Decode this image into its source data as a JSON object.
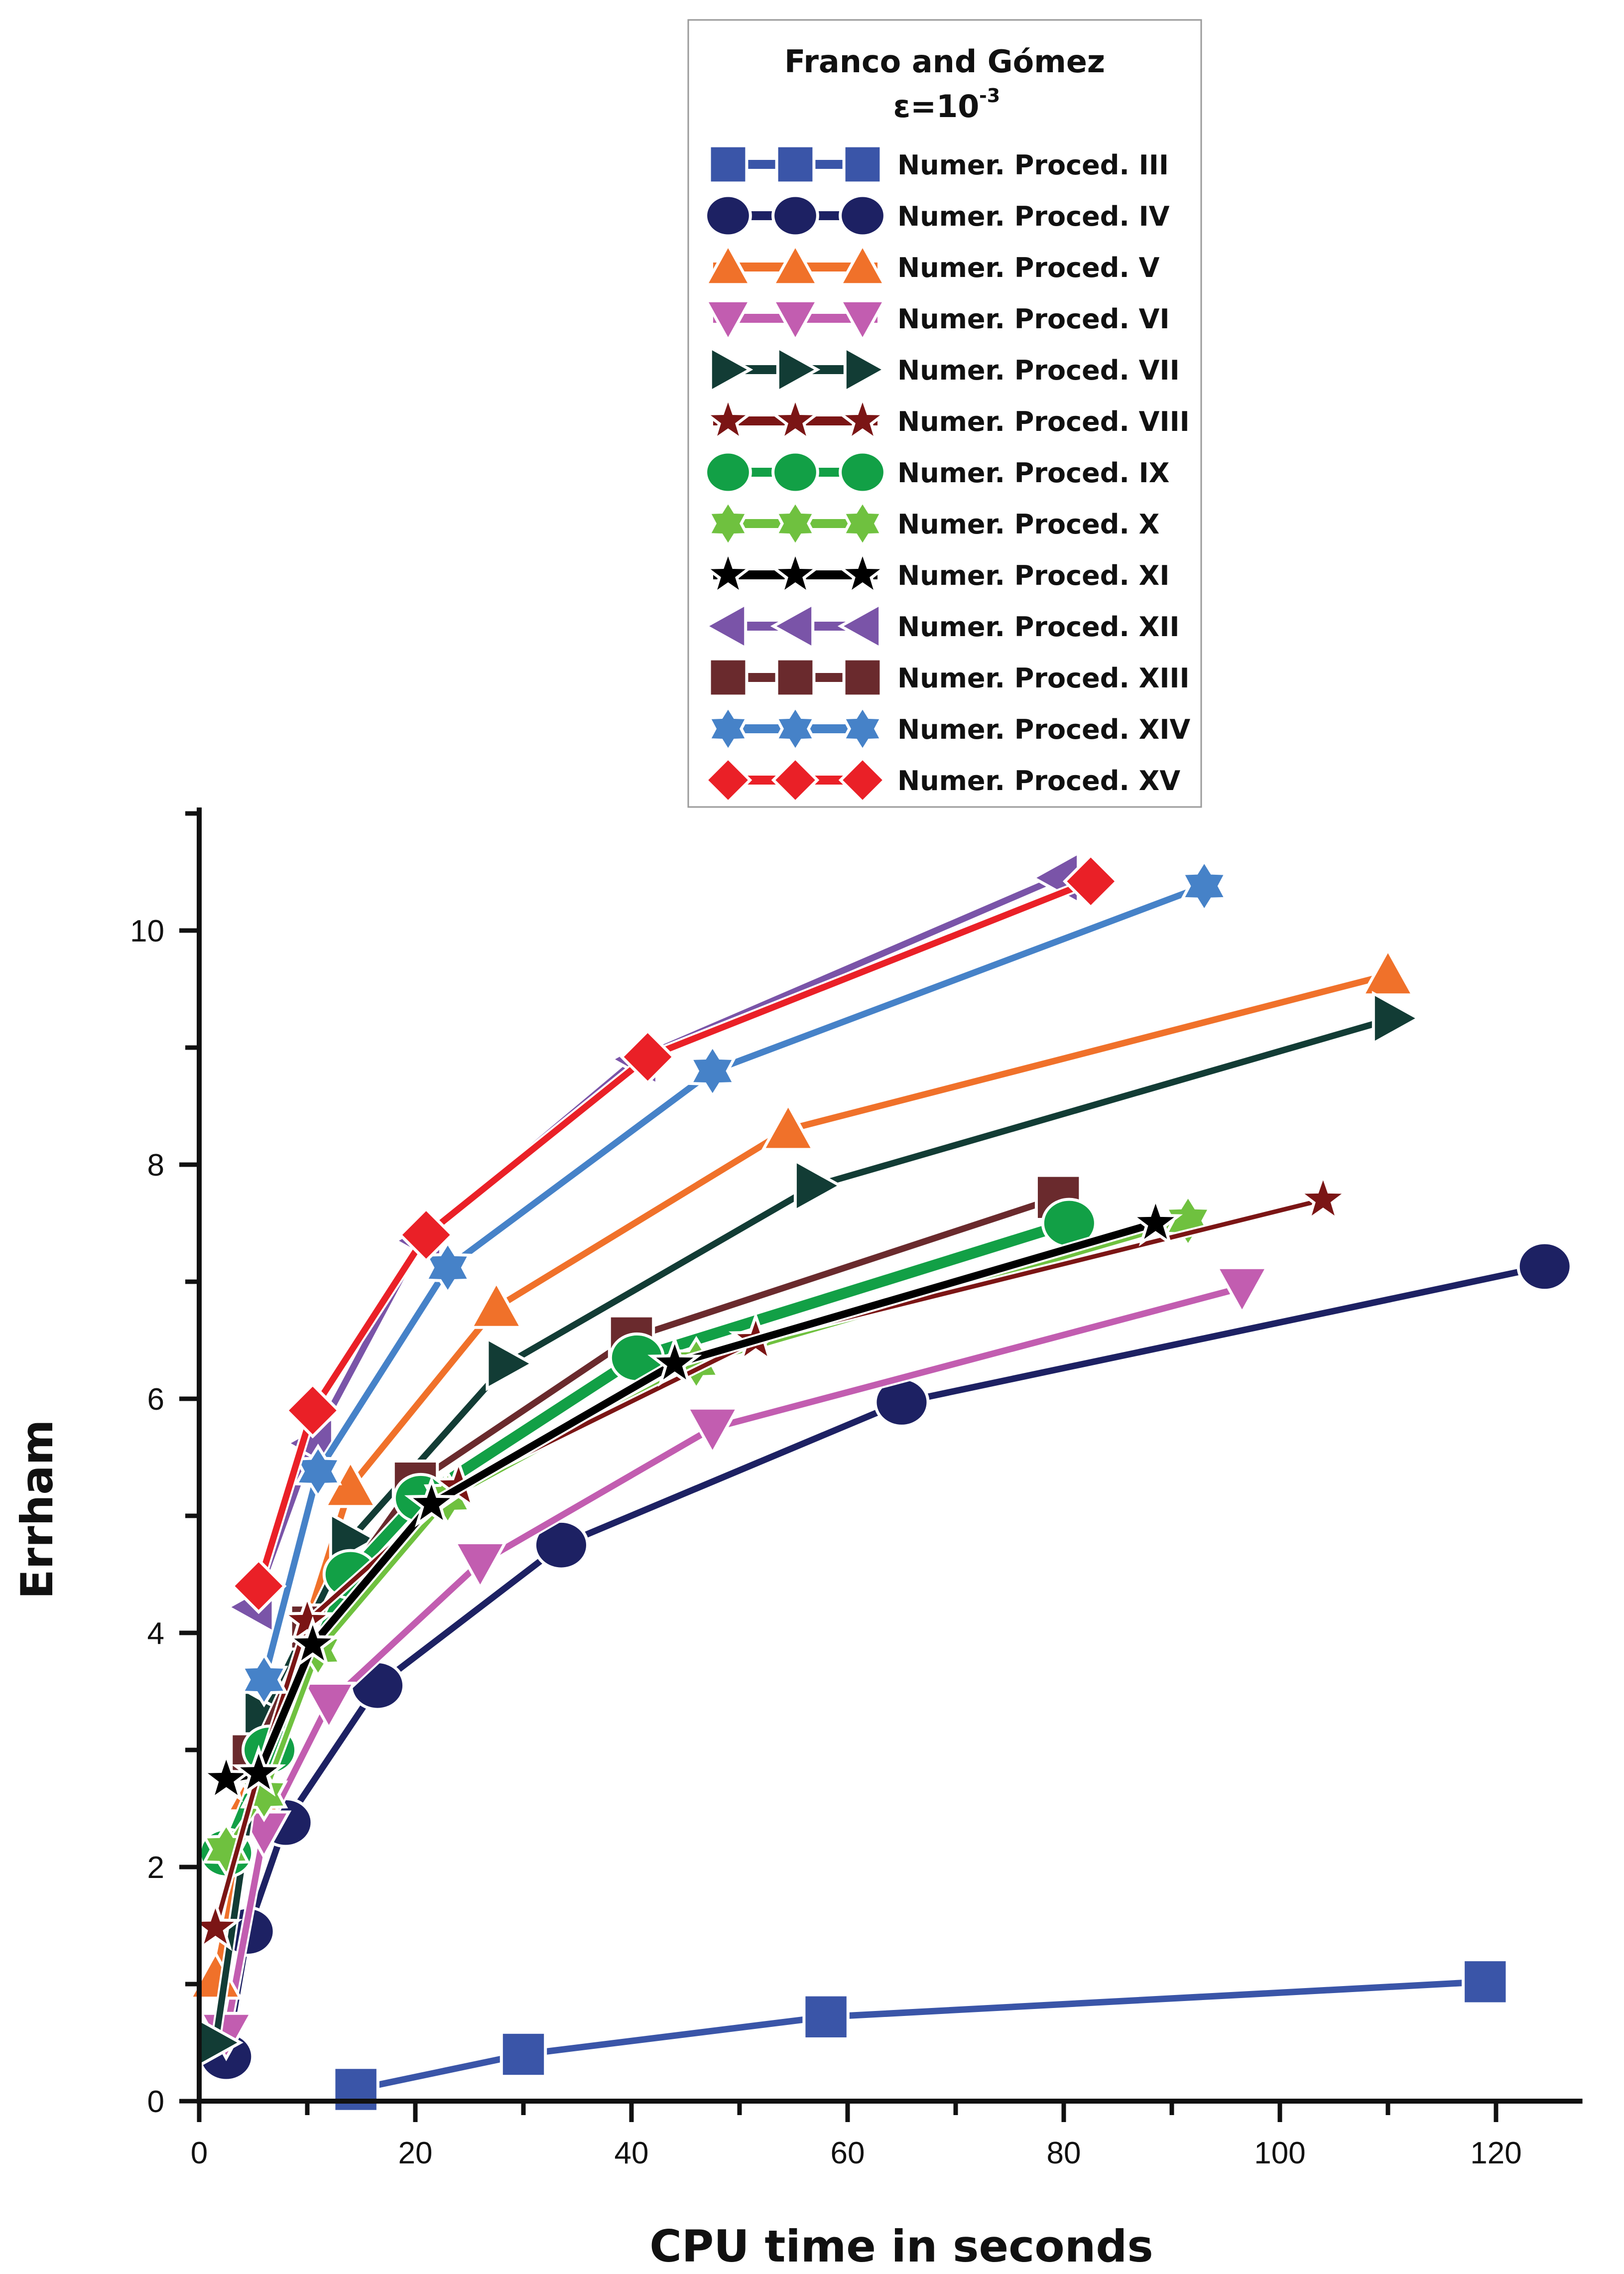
{
  "chart_data": {
    "type": "line",
    "xlabel": "CPU time in seconds",
    "ylabel": "Errham",
    "xlim": [
      0,
      128
    ],
    "ylim": [
      0,
      11
    ],
    "x_ticks": [
      0,
      20,
      40,
      60,
      80,
      100,
      120
    ],
    "y_ticks": [
      0,
      2,
      4,
      6,
      8,
      10
    ],
    "legend": {
      "title": "Franco and Gómez",
      "subtitle_base": "ε=10",
      "subtitle_exp": "-3",
      "placement": "top-center"
    },
    "series": [
      {
        "name": "Numer. Proced. III",
        "marker": "square",
        "color": "#3a55a8",
        "x": [
          14.5,
          30.0,
          58.0,
          119.0
        ],
        "y": [
          0.1,
          0.4,
          0.72,
          1.02
        ]
      },
      {
        "name": "Numer. Proced. IV",
        "marker": "circle",
        "color": "#1d2163",
        "x": [
          2.5,
          4.5,
          8.0,
          16.5,
          33.5,
          65.0,
          124.5
        ],
        "y": [
          0.38,
          1.45,
          2.38,
          3.55,
          4.75,
          5.97,
          7.13
        ]
      },
      {
        "name": "Numer. Proced. V",
        "marker": "triangle-up",
        "color": "#f0712a",
        "x": [
          1.5,
          5.0,
          14.0,
          27.5,
          54.5,
          110.0
        ],
        "y": [
          1.05,
          2.65,
          5.25,
          6.78,
          8.3,
          9.62
        ]
      },
      {
        "name": "Numer. Proced. VI",
        "marker": "triangle-down",
        "color": "#c25db0",
        "x": [
          2.5,
          6.0,
          12.0,
          26.0,
          47.5,
          96.5
        ],
        "y": [
          0.58,
          2.3,
          3.4,
          4.6,
          5.75,
          6.95
        ]
      },
      {
        "name": "Numer. Proced. VII",
        "marker": "triangle-right",
        "color": "#123c35",
        "x": [
          1.5,
          6.0,
          14.0,
          28.5,
          57.0,
          110.5
        ],
        "y": [
          0.5,
          3.3,
          4.8,
          6.3,
          7.82,
          9.25
        ]
      },
      {
        "name": "Numer. Proced. VIII",
        "marker": "star5",
        "color": "#7b1515",
        "x": [
          1.5,
          5.5,
          10.0,
          24.0,
          51.5,
          104.0
        ],
        "y": [
          1.48,
          2.8,
          4.1,
          5.25,
          6.5,
          7.7
        ]
      },
      {
        "name": "Numer. Proced. IX",
        "marker": "circle",
        "color": "#12a046",
        "x": [
          2.5,
          6.5,
          14.0,
          20.5,
          40.5,
          80.5
        ],
        "y": [
          2.12,
          3.0,
          4.5,
          5.15,
          6.35,
          7.5
        ]
      },
      {
        "name": "Numer. Proced. X",
        "marker": "star6",
        "color": "#6fc13f",
        "x": [
          2.5,
          6.0,
          11.0,
          23.0,
          46.0,
          91.5
        ],
        "y": [
          2.15,
          2.62,
          3.85,
          5.15,
          6.3,
          7.52
        ]
      },
      {
        "name": "Numer. Proced. XI",
        "marker": "star5",
        "color": "#000000",
        "x": [
          2.5,
          5.5,
          10.5,
          21.5,
          44.0,
          88.5
        ],
        "y": [
          2.75,
          2.8,
          3.9,
          5.1,
          6.3,
          7.5
        ]
      },
      {
        "name": "Numer. Proced. XII",
        "marker": "triangle-left",
        "color": "#7a54a8",
        "x": [
          5.0,
          10.5,
          20.5,
          40.5,
          79.5
        ],
        "y": [
          4.22,
          5.62,
          7.35,
          8.9,
          10.45
        ]
      },
      {
        "name": "Numer. Proced. XIII",
        "marker": "square",
        "color": "#6a2a2d",
        "x": [
          5.0,
          10.5,
          20.0,
          40.0,
          79.5
        ],
        "y": [
          2.95,
          4.05,
          5.28,
          6.52,
          7.72
        ]
      },
      {
        "name": "Numer. Proced. XIV",
        "marker": "star6",
        "color": "#4682c8",
        "x": [
          6.0,
          11.0,
          23.0,
          47.5,
          93.0
        ],
        "y": [
          3.6,
          5.38,
          7.12,
          8.8,
          10.38
        ]
      },
      {
        "name": "Numer. Proced. XV",
        "marker": "diamond",
        "color": "#ea2027",
        "x": [
          5.5,
          10.5,
          21.0,
          41.5,
          82.5
        ],
        "y": [
          4.4,
          5.9,
          7.4,
          8.92,
          10.42
        ]
      }
    ]
  }
}
